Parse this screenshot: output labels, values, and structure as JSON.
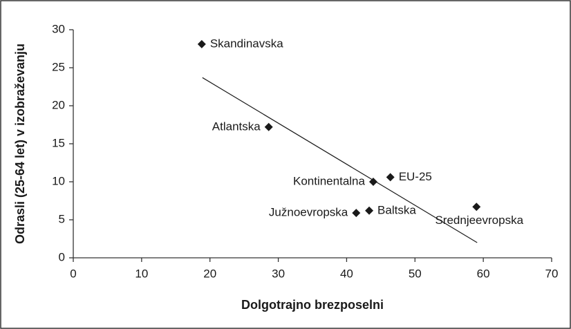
{
  "chart_data": {
    "type": "scatter",
    "xlabel": "Dolgotrajno brezposelni",
    "ylabel": "Odrasli (25-64 let) v izobraževanju",
    "series": [
      {
        "color": "#1a1a1a",
        "labels": [
          "Skandinavska",
          "Atlantska",
          "Kontinentalna",
          "EU-25",
          "Južnoevropska",
          "Baltska",
          "Srednjeevropska"
        ],
        "x": [
          18.8,
          28.6,
          43.9,
          46.4,
          41.4,
          43.3,
          59.0
        ],
        "values": [
          28.1,
          17.2,
          10.0,
          10.6,
          5.9,
          6.2,
          6.7
        ]
      }
    ],
    "trendline": {
      "color": "#1a1a1a",
      "x": [
        18.9,
        59.1
      ],
      "y": [
        23.7,
        2.0
      ]
    },
    "xlim": [
      0,
      70
    ],
    "xticks": [
      0,
      10,
      20,
      30,
      40,
      50,
      60,
      70
    ],
    "ylim": [
      0,
      30
    ],
    "yticks": [
      0,
      5,
      10,
      15,
      20,
      25,
      30
    ]
  }
}
